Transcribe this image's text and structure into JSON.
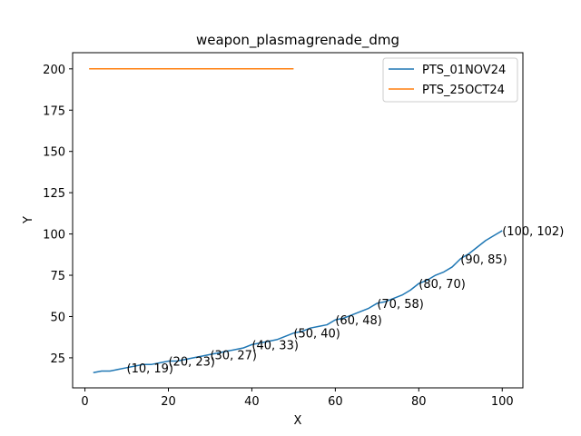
{
  "chart_data": {
    "type": "line",
    "title": "weapon_plasmagrenade_dmg",
    "xlabel": "X",
    "ylabel": "Y",
    "xlim": [
      -2.95,
      104.95
    ],
    "ylim": [
      6.8,
      209.8
    ],
    "xticks": [
      0,
      20,
      40,
      60,
      80,
      100
    ],
    "yticks": [
      25,
      50,
      75,
      100,
      125,
      150,
      175,
      200
    ],
    "grid": false,
    "legend_position": "upper right",
    "series": [
      {
        "name": "PTS_01NOV24",
        "color": "#1f77b4",
        "x": [
          2,
          4,
          6,
          8,
          10,
          12,
          14,
          16,
          18,
          20,
          22,
          24,
          26,
          28,
          30,
          32,
          34,
          36,
          38,
          40,
          42,
          44,
          46,
          48,
          50,
          52,
          54,
          56,
          58,
          60,
          62,
          64,
          66,
          68,
          70,
          72,
          74,
          76,
          78,
          80,
          82,
          84,
          86,
          88,
          90,
          92,
          94,
          96,
          98,
          100
        ],
        "y": [
          16,
          17,
          17,
          18,
          19,
          20,
          21,
          21,
          22,
          23,
          23,
          24,
          25,
          26,
          27,
          28,
          29,
          30,
          31,
          33,
          34,
          35,
          36,
          38,
          40,
          41,
          43,
          44,
          45,
          48,
          49,
          51,
          53,
          55,
          58,
          59,
          61,
          63,
          66,
          70,
          72,
          75,
          77,
          80,
          85,
          88,
          92,
          96,
          99,
          102
        ]
      },
      {
        "name": "PTS_25OCT24",
        "color": "#ff7f0e",
        "x": [
          1,
          50
        ],
        "y": [
          200,
          200
        ]
      }
    ],
    "annotations": [
      {
        "x": 10,
        "y": 19,
        "text": "(10, 19)"
      },
      {
        "x": 20,
        "y": 23,
        "text": "(20, 23)"
      },
      {
        "x": 30,
        "y": 27,
        "text": "(30, 27)"
      },
      {
        "x": 40,
        "y": 33,
        "text": "(40, 33)"
      },
      {
        "x": 50,
        "y": 40,
        "text": "(50, 40)"
      },
      {
        "x": 60,
        "y": 48,
        "text": "(60, 48)"
      },
      {
        "x": 70,
        "y": 58,
        "text": "(70, 58)"
      },
      {
        "x": 80,
        "y": 70,
        "text": "(80, 70)"
      },
      {
        "x": 90,
        "y": 85,
        "text": "(90, 85)"
      },
      {
        "x": 100,
        "y": 102,
        "text": "(100, 102)"
      }
    ]
  }
}
